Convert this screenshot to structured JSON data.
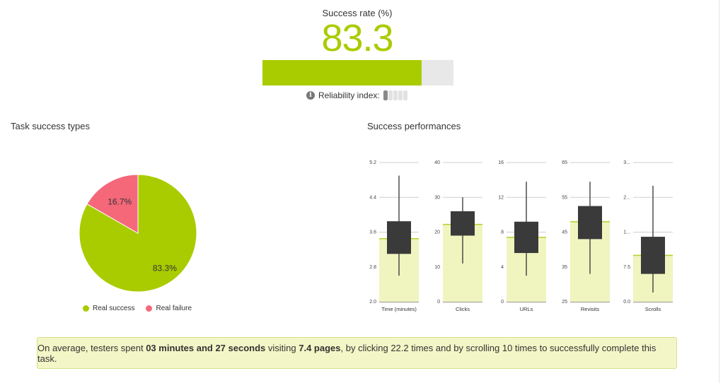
{
  "header": {
    "success_rate_label": "Success rate (%)",
    "success_rate_value": "83.3",
    "reliability_label": "Reliability index:"
  },
  "reliability_index": {
    "level": 1,
    "max": 5
  },
  "colors": {
    "accent": "#a9cc00",
    "failure": "#f4687a",
    "box": "#3a3a3a",
    "mean_band": "#f0f4bf"
  },
  "pie": {
    "title": "Task success types"
  },
  "perf": {
    "title": "Success performances"
  },
  "summary": {
    "s1": "On average, testers spent ",
    "b1": "03 minutes and 27 seconds",
    "s2": " visiting ",
    "b2": "7.4 pages",
    "s3": ", by clicking 22.2 times and by scrolling 10 times to successfully complete this task."
  },
  "chart_data": [
    {
      "type": "pie",
      "title": "Task success types",
      "legend": "bottom",
      "slices": [
        {
          "name": "Real success",
          "value": 83.3,
          "label": "83.3%",
          "color": "#a9cc00"
        },
        {
          "name": "Real failure",
          "value": 16.7,
          "label": "16.7%",
          "color": "#f4687a"
        }
      ]
    },
    {
      "type": "boxplot",
      "title": "Success performances",
      "panels": [
        {
          "label": "Time (minutes)",
          "ticks": [
            "2.0",
            "2.8",
            "3.6",
            "4.4",
            "5.2"
          ],
          "ylim": [
            2.0,
            5.2
          ],
          "min": 2.6,
          "q1": 3.1,
          "q3": 3.85,
          "max": 4.9,
          "mean": 3.45
        },
        {
          "label": "Clicks",
          "ticks": [
            "0",
            "10",
            "20",
            "30",
            "40"
          ],
          "ylim": [
            0,
            40
          ],
          "min": 11,
          "q1": 19,
          "q3": 26,
          "max": 30,
          "mean": 22.2
        },
        {
          "label": "URLs",
          "ticks": [
            "0",
            "4",
            "8",
            "12",
            "16"
          ],
          "ylim": [
            0,
            16
          ],
          "min": 3,
          "q1": 5.6,
          "q3": 9.2,
          "max": 13.8,
          "mean": 7.4
        },
        {
          "label": "Revisits",
          "ticks": [
            "25",
            "35",
            "45",
            "55",
            "65"
          ],
          "ylim": [
            25,
            65
          ],
          "min": 33,
          "q1": 43,
          "q3": 52.5,
          "max": 59.5,
          "mean": 48
        },
        {
          "label": "Scrolls",
          "ticks": [
            "0.0",
            "7.5",
            "1...",
            "2...",
            "3..."
          ],
          "ylim": [
            0,
            30
          ],
          "min": 2,
          "q1": 6,
          "q3": 14,
          "max": 25,
          "mean": 10
        }
      ]
    }
  ]
}
